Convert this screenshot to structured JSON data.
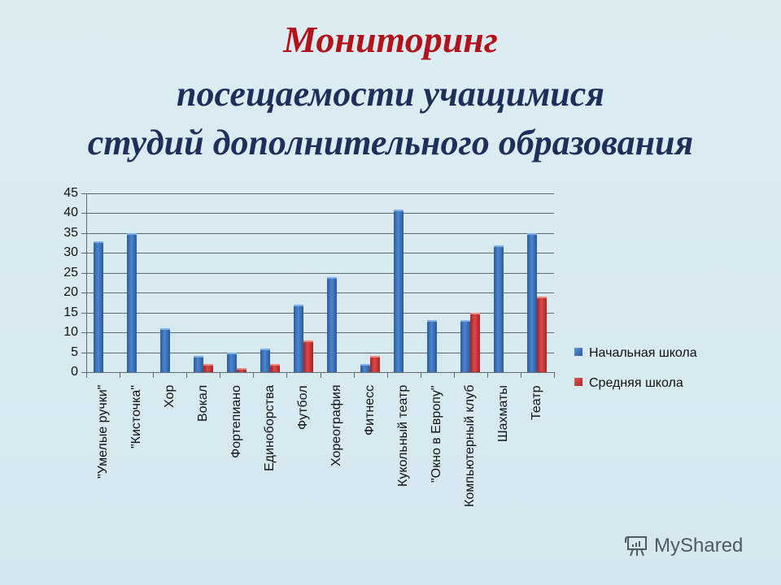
{
  "title": {
    "line1": "Мониторинг",
    "line2": "посещаемости учащимися",
    "line3": "студий дополнительного образования"
  },
  "colors": {
    "title_accent": "#b3121b",
    "title_main": "#1f2f5c",
    "series_primary": "#3a72bb",
    "series_secondary": "#c8373a",
    "background": "#dcedf2"
  },
  "watermark": {
    "icon": "presentation-board-icon",
    "text": "MyShared"
  },
  "chart_data": {
    "type": "bar",
    "title": "Мониторинг посещаемости учащимися студий дополнительного образования",
    "xlabel": "",
    "ylabel": "",
    "ylim": [
      0,
      45
    ],
    "yticks": [
      "0",
      "5",
      "10",
      "15",
      "20",
      "25",
      "30",
      "35",
      "40",
      "45"
    ],
    "grid": true,
    "legend_position": "right",
    "categories": [
      "\"Умелые ручки\"",
      "\"Кисточка\"",
      "Хор",
      "Вокал",
      "Фортепиано",
      "Единоборства",
      "Футбол",
      "Хореография",
      "Фитнесс",
      "Кукольный театр",
      "\"Окно в Европу\"",
      "Компьютерный клуб",
      "Шахматы",
      "Театр"
    ],
    "series": [
      {
        "name": "Начальная школа",
        "values": [
          33,
          35,
          11,
          4,
          5,
          6,
          17,
          24,
          2,
          41,
          13,
          13,
          32,
          35
        ]
      },
      {
        "name": "Средняя школа",
        "values": [
          0,
          0,
          0,
          2,
          1,
          2,
          8,
          0,
          4,
          0,
          0,
          15,
          0,
          19
        ]
      }
    ]
  }
}
